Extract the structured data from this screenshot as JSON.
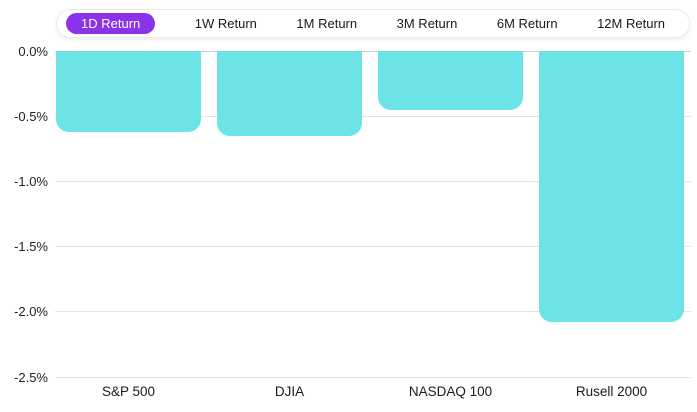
{
  "tabs": {
    "items": [
      {
        "label": "1D Return",
        "selected": true
      },
      {
        "label": "1W Return",
        "selected": false
      },
      {
        "label": "1M Return",
        "selected": false
      },
      {
        "label": "3M Return",
        "selected": false
      },
      {
        "label": "6M Return",
        "selected": false
      },
      {
        "label": "12M Return",
        "selected": false
      }
    ]
  },
  "colors": {
    "accent_purple": "#8B33E8",
    "bar_cyan": "#6CE3E6",
    "gridline": "#e4e4e4",
    "zero_line": "#cfcfcf",
    "text": "#1a1a1a"
  },
  "chart_data": {
    "type": "bar",
    "title": "",
    "series_name": "1D Return",
    "categories": [
      "S&P 500",
      "DJIA",
      "NASDAQ 100",
      "Rusell 2000"
    ],
    "values": [
      -0.62,
      -0.65,
      -0.45,
      -2.08
    ],
    "unit": "%",
    "xlabel": "",
    "ylabel": "",
    "ylim": [
      0,
      -2.5
    ],
    "yticks": [
      {
        "label": "0.0%",
        "value": 0
      },
      {
        "label": "-0.5%",
        "value": -0.5
      },
      {
        "label": "-1.0%",
        "value": -1.0
      },
      {
        "label": "-1.5%",
        "value": -1.5
      },
      {
        "label": "-2.0%",
        "value": -2.0
      },
      {
        "label": "-2.5%",
        "value": -2.5
      }
    ],
    "grid": true,
    "legend": false,
    "bar_color": "#6CE3E6"
  }
}
